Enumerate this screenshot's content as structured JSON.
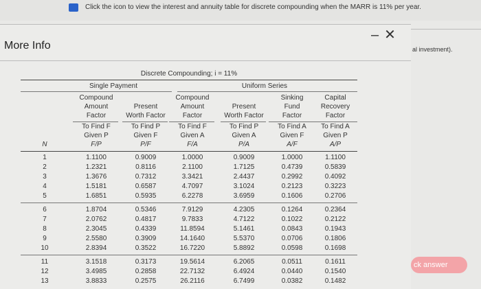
{
  "banner": {
    "text": "Click the icon to view the interest and annuity table for discrete compounding when the MARR is 11% per year."
  },
  "dialog": {
    "title": "More Info"
  },
  "background": {
    "fragment": "al investment).",
    "button": "ck answer"
  },
  "table": {
    "title": "Discrete Compounding; i = 11%",
    "groups": [
      "Single Payment",
      "Uniform Series"
    ],
    "n_header": "N",
    "columns": [
      {
        "name": [
          "Compound",
          "Amount",
          "Factor"
        ],
        "find": [
          "To Find F",
          "Given P"
        ],
        "symbol": "F/P"
      },
      {
        "name": [
          "Present",
          "Worth Factor"
        ],
        "find": [
          "To Find P",
          "Given F"
        ],
        "symbol": "P/F"
      },
      {
        "name": [
          "Compound",
          "Amount",
          "Factor"
        ],
        "find": [
          "To Find F",
          "Given A"
        ],
        "symbol": "F/A"
      },
      {
        "name": [
          "Present",
          "Worth Factor"
        ],
        "find": [
          "To Find P",
          "Given A"
        ],
        "symbol": "P/A"
      },
      {
        "name": [
          "Sinking",
          "Fund",
          "Factor"
        ],
        "find": [
          "To Find A",
          "Given F"
        ],
        "symbol": "A/F"
      },
      {
        "name": [
          "Capital",
          "Recovery",
          "Factor"
        ],
        "find": [
          "To Find A",
          "Given P"
        ],
        "symbol": "A/P"
      }
    ],
    "rows": [
      [
        "1",
        "1.1100",
        "0.9009",
        "1.0000",
        "0.9009",
        "1.0000",
        "1.1100"
      ],
      [
        "2",
        "1.2321",
        "0.8116",
        "2.1100",
        "1.7125",
        "0.4739",
        "0.5839"
      ],
      [
        "3",
        "1.3676",
        "0.7312",
        "3.3421",
        "2.4437",
        "0.2992",
        "0.4092"
      ],
      [
        "4",
        "1.5181",
        "0.6587",
        "4.7097",
        "3.1024",
        "0.2123",
        "0.3223"
      ],
      [
        "5",
        "1.6851",
        "0.5935",
        "6.2278",
        "3.6959",
        "0.1606",
        "0.2706"
      ],
      [
        "6",
        "1.8704",
        "0.5346",
        "7.9129",
        "4.2305",
        "0.1264",
        "0.2364"
      ],
      [
        "7",
        "2.0762",
        "0.4817",
        "9.7833",
        "4.7122",
        "0.1022",
        "0.2122"
      ],
      [
        "8",
        "2.3045",
        "0.4339",
        "11.8594",
        "5.1461",
        "0.0843",
        "0.1943"
      ],
      [
        "9",
        "2.5580",
        "0.3909",
        "14.1640",
        "5.5370",
        "0.0706",
        "0.1806"
      ],
      [
        "10",
        "2.8394",
        "0.3522",
        "16.7220",
        "5.8892",
        "0.0598",
        "0.1698"
      ],
      [
        "11",
        "3.1518",
        "0.3173",
        "19.5614",
        "6.2065",
        "0.0511",
        "0.1611"
      ],
      [
        "12",
        "3.4985",
        "0.2858",
        "22.7132",
        "6.4924",
        "0.0440",
        "0.1540"
      ],
      [
        "13",
        "3.8833",
        "0.2575",
        "26.2116",
        "6.7499",
        "0.0382",
        "0.1482"
      ]
    ]
  }
}
